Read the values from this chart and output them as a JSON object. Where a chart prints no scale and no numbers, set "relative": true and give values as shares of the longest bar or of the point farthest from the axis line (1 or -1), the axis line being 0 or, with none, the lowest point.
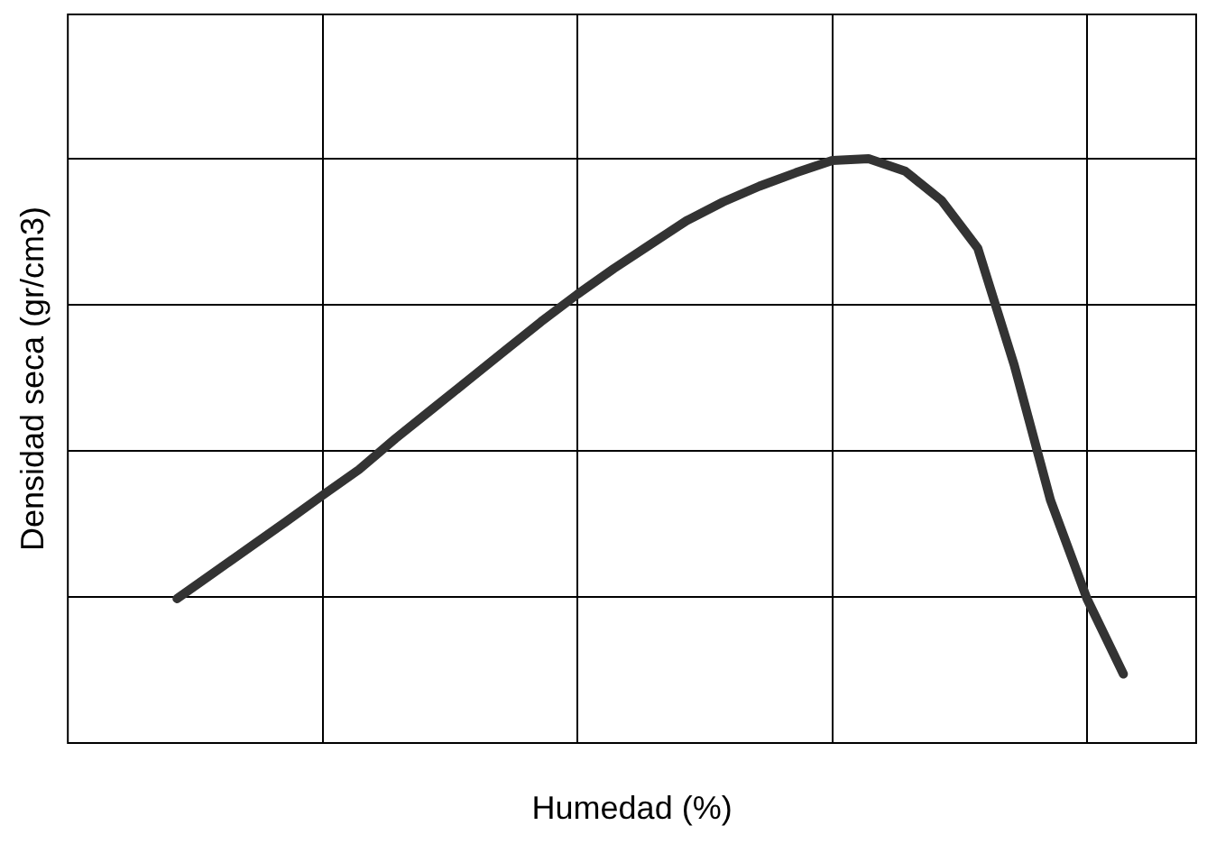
{
  "chart_data": {
    "type": "line",
    "xlabel": "Humedad (%)",
    "ylabel": "Densidad seca (gr/cm3)",
    "relative": true,
    "grid": true,
    "marker": "none",
    "line_style": "solid",
    "color": "#333333",
    "categories": [
      null,
      null,
      null,
      null,
      null,
      null,
      null,
      null,
      null,
      null,
      null,
      null,
      null,
      null,
      null,
      null,
      null,
      null,
      null,
      null,
      null,
      null,
      null,
      null,
      null,
      null,
      null,
      null,
      null,
      null,
      null,
      null
    ],
    "values": [
      null,
      null,
      null,
      0.247,
      0.291,
      0.335,
      0.379,
      0.424,
      0.468,
      0.521,
      0.571,
      0.621,
      0.671,
      0.721,
      0.768,
      0.812,
      0.853,
      0.894,
      0.926,
      0.953,
      0.976,
      0.997,
      1,
      0.979,
      0.929,
      0.847,
      0.647,
      0.415,
      0.247,
      0.118,
      null,
      null
    ]
  }
}
